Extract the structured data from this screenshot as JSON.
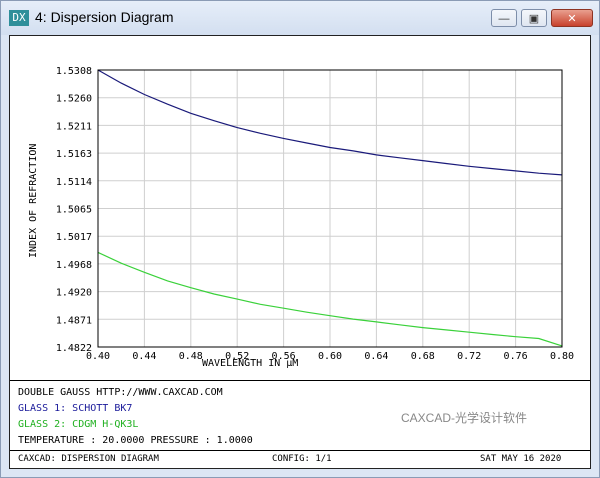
{
  "window": {
    "title": "4: Dispersion Diagram",
    "app_icon_label": "DX",
    "minimize_glyph": "—",
    "maximize_glyph": "▣",
    "close_glyph": "✕"
  },
  "chart_data": {
    "type": "line",
    "xlabel": "WAVELENGTH IN μM",
    "ylabel": "INDEX OF REFRACTION",
    "xlim": [
      0.4,
      0.8
    ],
    "ylim": [
      1.4822,
      1.5308
    ],
    "x_ticks": [
      "0.40",
      "0.44",
      "0.48",
      "0.52",
      "0.56",
      "0.60",
      "0.64",
      "0.68",
      "0.72",
      "0.76",
      "0.80"
    ],
    "y_ticks": [
      "1.5308",
      "1.5260",
      "1.5211",
      "1.5163",
      "1.5114",
      "1.5065",
      "1.5017",
      "1.4968",
      "1.4920",
      "1.4871",
      "1.4822"
    ],
    "grid": true,
    "series": [
      {
        "name": "GLASS 1: SCHOTT BK7",
        "color": "#1a1a7a",
        "x": [
          0.4,
          0.42,
          0.44,
          0.46,
          0.48,
          0.5,
          0.52,
          0.54,
          0.56,
          0.58,
          0.6,
          0.62,
          0.64,
          0.66,
          0.68,
          0.7,
          0.72,
          0.74,
          0.76,
          0.78,
          0.8
        ],
        "y": [
          1.5308,
          1.5285,
          1.5265,
          1.5248,
          1.5232,
          1.5219,
          1.5207,
          1.5197,
          1.5188,
          1.518,
          1.5172,
          1.5166,
          1.5159,
          1.5154,
          1.5149,
          1.5144,
          1.5139,
          1.5135,
          1.5131,
          1.5127,
          1.5124
        ]
      },
      {
        "name": "GLASS 2: CDGM H-QK3L",
        "color": "#3ad13a",
        "x": [
          0.4,
          0.42,
          0.44,
          0.46,
          0.48,
          0.5,
          0.52,
          0.54,
          0.56,
          0.58,
          0.6,
          0.62,
          0.64,
          0.66,
          0.68,
          0.7,
          0.72,
          0.74,
          0.76,
          0.78,
          0.8
        ],
        "y": [
          1.4988,
          1.4969,
          1.4953,
          1.4938,
          1.4926,
          1.4915,
          1.4906,
          1.4897,
          1.489,
          1.4883,
          1.4877,
          1.4871,
          1.4866,
          1.4861,
          1.4856,
          1.4852,
          1.4848,
          1.4844,
          1.484,
          1.4837,
          1.4824
        ]
      }
    ]
  },
  "info": {
    "line1": "DOUBLE GAUSS  HTTP://WWW.CAXCAD.COM",
    "line2": "GLASS 1: SCHOTT BK7",
    "line3": "GLASS 2: CDGM H-QK3L",
    "line4": "TEMPERATURE : 20.0000  PRESSURE : 1.0000"
  },
  "status": {
    "left": "CAXCAD: DISPERSION DIAGRAM",
    "middle": "CONFIG: 1/1",
    "right": "SAT MAY 16 2020"
  },
  "watermark": "CAXCAD-光学设计软件"
}
